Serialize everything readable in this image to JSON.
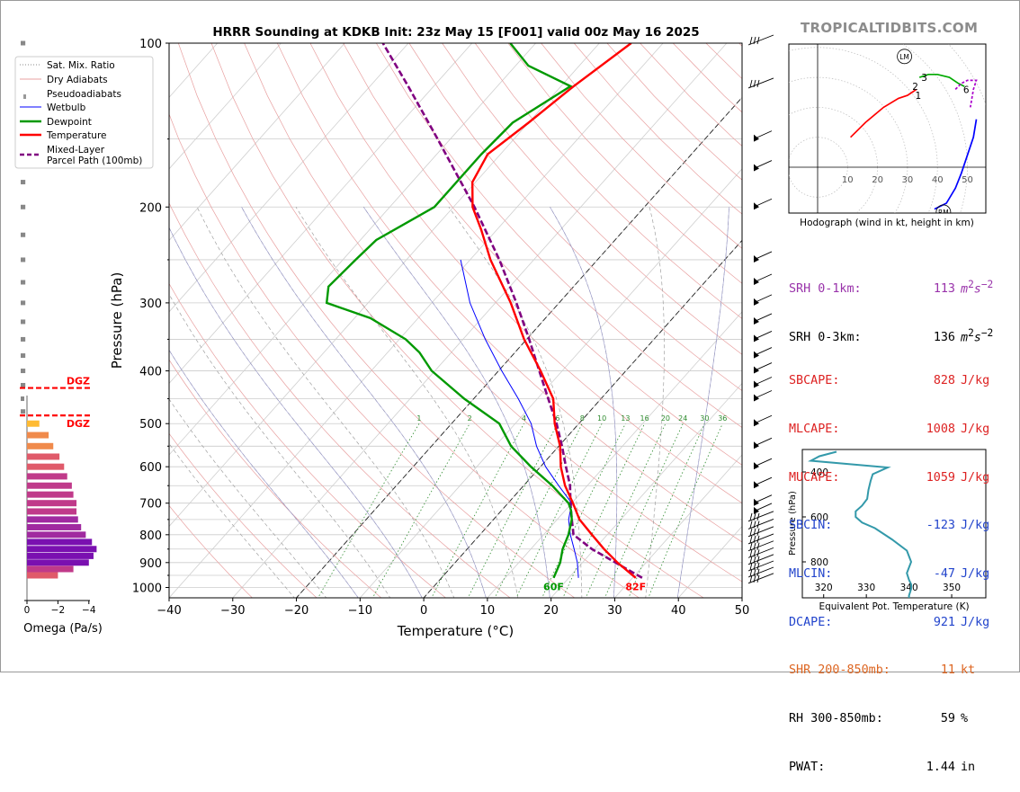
{
  "title": "HRRR Sounding at KDKB Init: 23z May 15 [F001] valid 00z May 16 2025",
  "brand": "TROPICALTIDBITS.COM",
  "colors": {
    "temperature": "#ff0000",
    "dewpoint": "#009900",
    "wetbulb": "#0000ff",
    "parcel": "#800080",
    "dry_adiabats": "#e8a0a0",
    "sat_mix_ratio": "#2e8b2e",
    "pseudoadiabats": "#a0a0a0",
    "hodo_0_1": "#ff0000",
    "hodo_3_6": "#00aa00",
    "hodo_6plus": "#aa00cc",
    "hodo_1_3": "#0000ff",
    "theta_e": "#3399aa",
    "dgz": "#ff0000"
  },
  "legend": [
    {
      "label": "Sat. Mix. Ratio",
      "style": "dotted-gray"
    },
    {
      "label": "Dry Adiabats",
      "style": "thin-pink"
    },
    {
      "label": "Pseudoadiabats",
      "style": "dashed-gray"
    },
    {
      "label": "Wetbulb",
      "style": "thin-blue"
    },
    {
      "label": "Dewpoint",
      "style": "thick-green"
    },
    {
      "label": "Temperature",
      "style": "thick-red"
    },
    {
      "label": "Mixed-Layer",
      "style": "dashed-purple"
    },
    {
      "label": "Parcel Path (100mb)",
      "style": "none"
    }
  ],
  "chart_data": [
    {
      "type": "line",
      "name": "skew-t",
      "xlabel": "Temperature (°C)",
      "ylabel": "Pressure (hPa)",
      "xlim": [
        -40,
        50
      ],
      "ylim": [
        1050,
        100
      ],
      "y_scale": "log",
      "skewed": true,
      "x_ticks": [
        "−40",
        "−30",
        "−20",
        "−10",
        "0",
        "10",
        "20",
        "30",
        "40",
        "50"
      ],
      "y_ticks": [
        "100",
        "200",
        "300",
        "400",
        "500",
        "600",
        "700",
        "800",
        "900",
        "1000"
      ],
      "mixing_ratio_labels": [
        "1",
        "2",
        "4",
        "6",
        "8",
        "10",
        "13",
        "16",
        "20",
        "24",
        "30",
        "36"
      ],
      "series": [
        {
          "name": "Temperature",
          "p": [
            960,
            900,
            850,
            800,
            750,
            700,
            650,
            600,
            550,
            500,
            450,
            400,
            350,
            300,
            250,
            220,
            200,
            180,
            160,
            140,
            120,
            100
          ],
          "t": [
            30.5,
            25.5,
            21.5,
            17.6,
            13.5,
            10.2,
            6.5,
            3.2,
            0.2,
            -3.8,
            -7.5,
            -13.4,
            -20.4,
            -27.6,
            -36.8,
            -42.5,
            -47,
            -50.5,
            -52,
            -50,
            -48,
            -45
          ]
        },
        {
          "name": "Dewpoint",
          "p": [
            960,
            900,
            850,
            800,
            750,
            720,
            700,
            650,
            600,
            550,
            500,
            450,
            400,
            370,
            350,
            320,
            300,
            280,
            250,
            230,
            200,
            160,
            140,
            120,
            110,
            100
          ],
          "t": [
            17.6,
            16.5,
            15,
            13.9,
            12.3,
            10.8,
            9.5,
            4.5,
            -1.5,
            -7.5,
            -12.5,
            -21.5,
            -30.5,
            -35,
            -39,
            -47.5,
            -56.5,
            -58.5,
            -58,
            -57.5,
            -53,
            -53,
            -52.5,
            -48.5,
            -58,
            -64
          ]
        },
        {
          "name": "Wetbulb",
          "p": [
            960,
            900,
            850,
            800,
            750,
            700,
            650,
            600,
            550,
            500,
            450,
            400,
            350,
            300,
            250
          ],
          "t": [
            21.5,
            19.2,
            16.8,
            14.2,
            11.8,
            10.0,
            5.5,
            0.8,
            -3.5,
            -7.5,
            -13.0,
            -19.5,
            -26.5,
            -34.0,
            -41.5
          ]
        },
        {
          "name": "Mixed-Layer Parcel Path (100mb)",
          "p": [
            960,
            900,
            850,
            800,
            750,
            700,
            650,
            600,
            550,
            500,
            450,
            400,
            350,
            300,
            250,
            200,
            150,
            120,
            100
          ],
          "t": [
            31.5,
            25.2,
            19.6,
            14.7,
            12.3,
            9.8,
            7.3,
            4.0,
            0.5,
            -3.5,
            -8.3,
            -13.6,
            -19.6,
            -26.7,
            -35.4,
            -46.7,
            -62.0,
            -74.0,
            -84.0
          ]
        }
      ],
      "surface_labels": {
        "dewpoint": "60F",
        "temperature": "82F"
      }
    },
    {
      "type": "bar",
      "name": "omega",
      "xlabel": "Omega (Pa/s)",
      "x_ticks": [
        "0",
        "−2",
        "−4"
      ],
      "dgz_label": "DGZ",
      "dgz_top_hpa": 430,
      "dgz_bottom_hpa": 483,
      "p": [
        100,
        120,
        140,
        160,
        180,
        200,
        225,
        250,
        275,
        300,
        325,
        350,
        375,
        400,
        425,
        450,
        475,
        500,
        525,
        550,
        575,
        600,
        625,
        650,
        675,
        700,
        725,
        750,
        775,
        800,
        825,
        850,
        875,
        900,
        925,
        950
      ],
      "omega": [
        -0.3,
        -0.3,
        -0.3,
        -0.3,
        -0.3,
        -0.3,
        -0.3,
        -0.3,
        -0.3,
        -0.3,
        -0.3,
        -0.3,
        -0.3,
        -0.3,
        -0.3,
        -0.2,
        -0.3,
        -0.8,
        -1.4,
        -1.7,
        -2.1,
        -2.4,
        -2.6,
        -2.9,
        -3.0,
        -3.2,
        -3.2,
        -3.3,
        -3.5,
        -3.8,
        -4.2,
        -4.5,
        -4.3,
        -4.0,
        -3.0,
        -2.0
      ]
    },
    {
      "type": "line",
      "name": "hodograph",
      "caption": "Hodograph (wind in kt, height in km)",
      "ring_labels": [
        "10",
        "20",
        "30",
        "40",
        "50"
      ],
      "height_labels": [
        "1",
        "2",
        "3",
        "6"
      ],
      "lm_label": "LM",
      "rm_label": "RM",
      "lm": [
        29,
        37
      ],
      "rm": [
        42,
        -15
      ],
      "segments": [
        {
          "name": "0-1km",
          "u": [
            11,
            16,
            22,
            27,
            30,
            33
          ],
          "v": [
            10,
            15,
            20,
            23,
            24,
            26
          ]
        },
        {
          "name": "1-3km",
          "u": [
            39,
            43,
            46,
            48,
            50,
            52,
            53
          ],
          "v": [
            -14,
            -12,
            -7,
            -2,
            4,
            10,
            16
          ]
        },
        {
          "name": "3-6km",
          "u": [
            34,
            37,
            40,
            44,
            47,
            49
          ],
          "v": [
            30,
            31,
            31,
            30,
            28,
            27
          ]
        },
        {
          "name": "6+km",
          "u": [
            46,
            48,
            50,
            53,
            52,
            51
          ],
          "v": [
            26,
            28,
            29,
            29,
            26,
            20
          ]
        }
      ]
    },
    {
      "type": "line",
      "name": "theta-e",
      "xlabel": "Equivalent Pot. Temperature (K)",
      "ylabel": "Pressure (hPa)",
      "xlim": [
        315,
        358
      ],
      "ylim": [
        960,
        300
      ],
      "x_ticks": [
        "320",
        "330",
        "340",
        "350"
      ],
      "y_ticks": [
        "400",
        "600",
        "800"
      ],
      "p": [
        310,
        330,
        350,
        380,
        410,
        440,
        480,
        520,
        550,
        575,
        600,
        625,
        650,
        700,
        750,
        800,
        850,
        880,
        900,
        920,
        950,
        960
      ],
      "theta_e": [
        323,
        319,
        317,
        335,
        331.5,
        331.0,
        330.5,
        330.2,
        329.0,
        327.5,
        327.5,
        329.0,
        332.0,
        336.0,
        339.5,
        340.5,
        339.5,
        340.0,
        340.5,
        340.5,
        340.0,
        340.0
      ]
    }
  ],
  "indices": [
    {
      "label": "SRH 0-1km:",
      "value": "113",
      "unit": "m2s-2",
      "color": "#9933aa"
    },
    {
      "label": "SRH 0-3km:",
      "value": "136",
      "unit": "m2s-2",
      "color": "#000000"
    },
    {
      "label": "SBCAPE:",
      "value": "828",
      "unit": "J/kg",
      "color": "#dd2222"
    },
    {
      "label": "MLCAPE:",
      "value": "1008",
      "unit": "J/kg",
      "color": "#dd2222"
    },
    {
      "label": "MUCAPE:",
      "value": "1059",
      "unit": "J/kg",
      "color": "#dd2222"
    },
    {
      "label": "SBCIN:",
      "value": "-123",
      "unit": "J/kg",
      "color": "#2244cc"
    },
    {
      "label": "MLCIN:",
      "value": "-47",
      "unit": "J/kg",
      "color": "#2244cc"
    },
    {
      "label": "DCAPE:",
      "value": "921",
      "unit": "J/kg",
      "color": "#2244cc"
    },
    {
      "label": "SHR 200-850mb:",
      "value": "11",
      "unit": "kt",
      "color": "#dd6622"
    },
    {
      "label": "RH 300-850mb:",
      "value": "59",
      "unit": "%",
      "color": "#000000"
    },
    {
      "label": "PWAT:",
      "value": "1.44",
      "unit": "in",
      "color": "#000000"
    }
  ]
}
